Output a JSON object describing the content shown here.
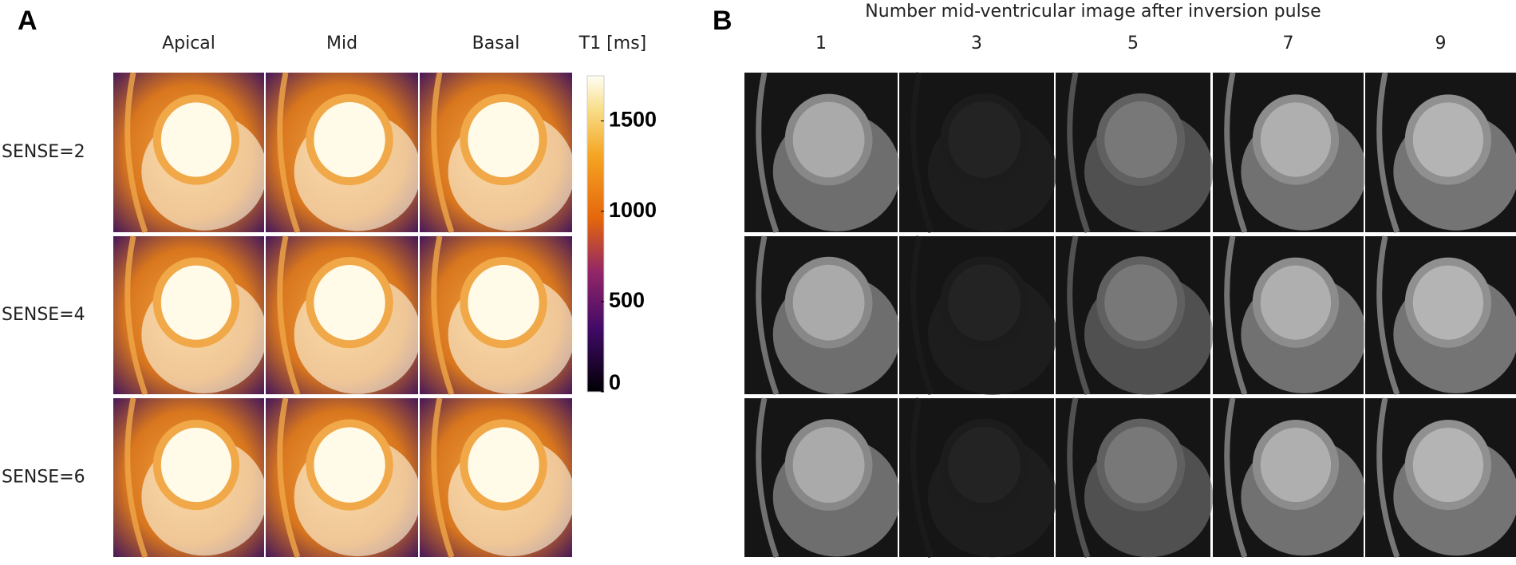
{
  "panel_a": {
    "label": "A",
    "columns": [
      "Apical",
      "Mid",
      "Basal"
    ],
    "rows": [
      "SENSE=2",
      "SENSE=4",
      "SENSE=6"
    ],
    "colorbar": {
      "title": "T1 [ms]",
      "range": [
        0,
        1750
      ],
      "ticks": [
        0,
        500,
        1000,
        1500
      ]
    }
  },
  "panel_b": {
    "label": "B",
    "title": "Number mid-ventricular image after inversion pulse",
    "columns": [
      "1",
      "3",
      "5",
      "7",
      "9"
    ]
  }
}
